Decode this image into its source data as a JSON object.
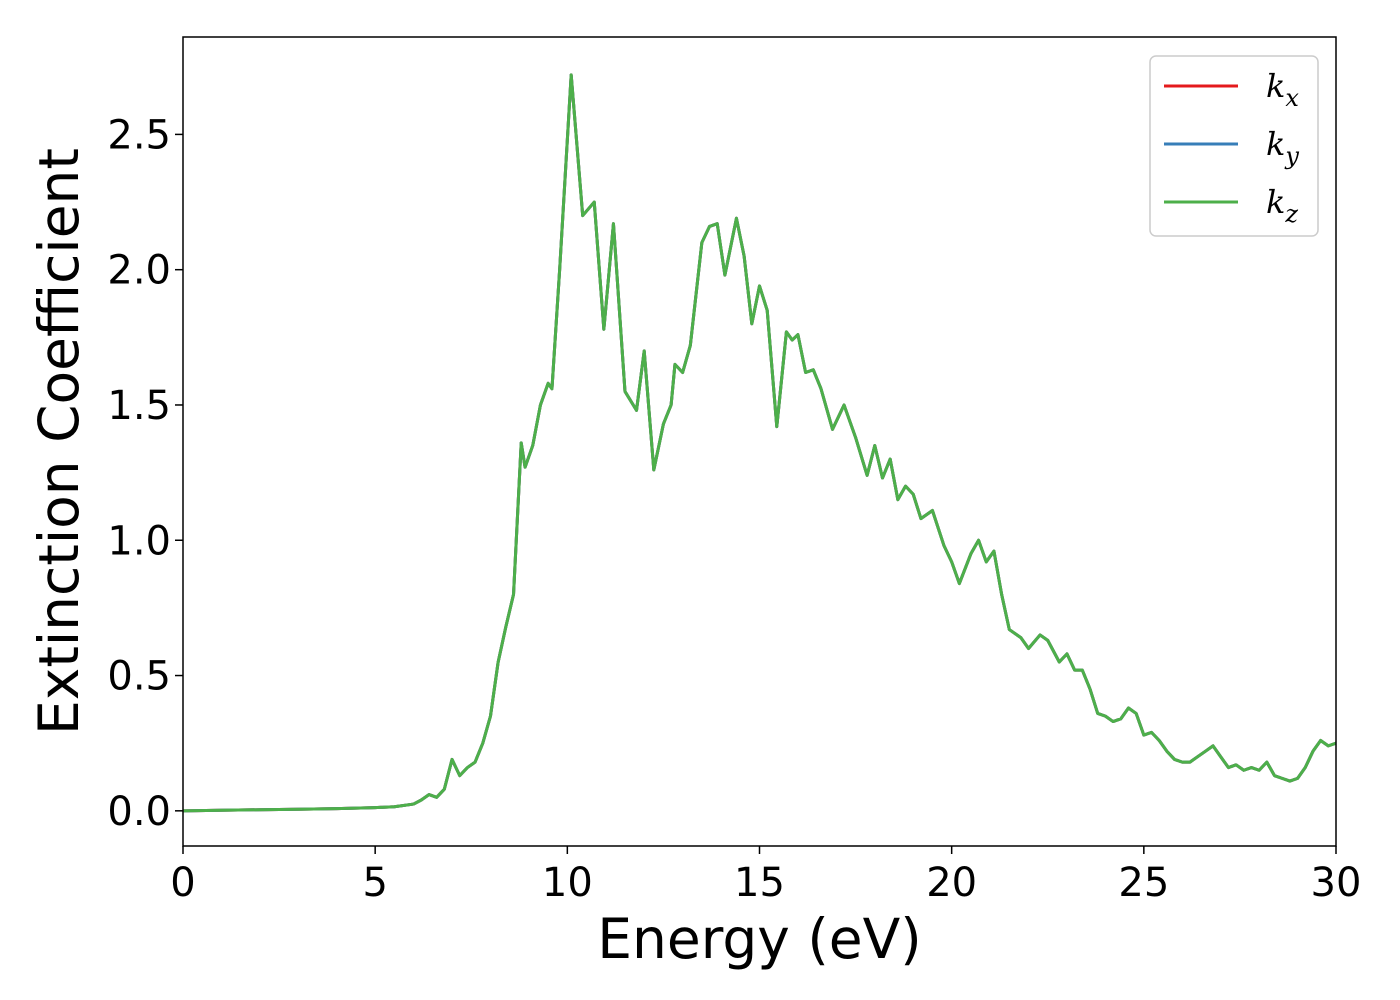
{
  "chart_data": {
    "type": "line",
    "title": "",
    "xlabel": "Energy (eV)",
    "ylabel": "Extinction Coefficient",
    "xlim": [
      0,
      30
    ],
    "ylim": [
      -0.13,
      2.86
    ],
    "xticks": [
      0,
      5,
      10,
      15,
      20,
      25,
      30
    ],
    "xtick_labels": [
      "0",
      "5",
      "10",
      "15",
      "20",
      "25",
      "30"
    ],
    "yticks": [
      0.0,
      0.5,
      1.0,
      1.5,
      2.0,
      2.5
    ],
    "ytick_labels": [
      "0.0",
      "0.5",
      "1.0",
      "1.5",
      "2.0",
      "2.5"
    ],
    "grid": false,
    "legend_position": "top-right",
    "series": [
      {
        "name": "k_x",
        "legend_base": "k",
        "legend_sub": "x",
        "color": "#e41a1c"
      },
      {
        "name": "k_y",
        "legend_base": "k",
        "legend_sub": "y",
        "color": "#377eb8"
      },
      {
        "name": "k_z",
        "legend_base": "k",
        "legend_sub": "z",
        "color": "#4daf4a"
      }
    ],
    "shared_x": [
      0,
      1,
      2,
      3,
      4,
      5,
      5.5,
      6.0,
      6.2,
      6.4,
      6.6,
      6.8,
      7.0,
      7.2,
      7.4,
      7.6,
      7.8,
      8.0,
      8.2,
      8.4,
      8.6,
      8.8,
      8.9,
      9.1,
      9.3,
      9.5,
      9.6,
      9.8,
      10.1,
      10.4,
      10.7,
      10.95,
      11.2,
      11.5,
      11.8,
      12.0,
      12.25,
      12.5,
      12.7,
      12.8,
      13.0,
      13.2,
      13.5,
      13.7,
      13.9,
      14.1,
      14.4,
      14.6,
      14.8,
      15.0,
      15.2,
      15.45,
      15.7,
      15.85,
      16.0,
      16.2,
      16.4,
      16.6,
      16.9,
      17.2,
      17.5,
      17.8,
      18.0,
      18.2,
      18.4,
      18.6,
      18.8,
      19.0,
      19.2,
      19.5,
      19.8,
      20.0,
      20.2,
      20.5,
      20.7,
      20.9,
      21.1,
      21.3,
      21.5,
      21.8,
      22.0,
      22.3,
      22.5,
      22.8,
      23.0,
      23.2,
      23.4,
      23.6,
      23.8,
      24.0,
      24.2,
      24.4,
      24.6,
      24.8,
      25.0,
      25.2,
      25.4,
      25.6,
      25.8,
      26.0,
      26.2,
      26.4,
      26.6,
      26.8,
      27.0,
      27.2,
      27.4,
      27.6,
      27.8,
      28.0,
      28.2,
      28.4,
      28.6,
      28.8,
      29.0,
      29.2,
      29.4,
      29.6,
      29.8,
      30.0
    ],
    "shared_y": [
      0.0,
      0.002,
      0.004,
      0.006,
      0.008,
      0.012,
      0.015,
      0.025,
      0.04,
      0.06,
      0.05,
      0.08,
      0.19,
      0.13,
      0.16,
      0.18,
      0.25,
      0.35,
      0.55,
      0.68,
      0.8,
      1.36,
      1.27,
      1.35,
      1.5,
      1.58,
      1.56,
      2.0,
      2.72,
      2.2,
      2.25,
      1.78,
      2.17,
      1.55,
      1.48,
      1.7,
      1.26,
      1.43,
      1.5,
      1.65,
      1.62,
      1.72,
      2.1,
      2.16,
      2.17,
      1.98,
      2.19,
      2.05,
      1.8,
      1.94,
      1.85,
      1.42,
      1.77,
      1.74,
      1.76,
      1.62,
      1.63,
      1.56,
      1.41,
      1.5,
      1.38,
      1.24,
      1.35,
      1.23,
      1.3,
      1.15,
      1.2,
      1.17,
      1.08,
      1.11,
      0.98,
      0.92,
      0.84,
      0.95,
      1.0,
      0.92,
      0.96,
      0.8,
      0.67,
      0.64,
      0.6,
      0.65,
      0.63,
      0.55,
      0.58,
      0.52,
      0.52,
      0.45,
      0.36,
      0.35,
      0.33,
      0.34,
      0.38,
      0.36,
      0.28,
      0.29,
      0.26,
      0.22,
      0.19,
      0.18,
      0.18,
      0.2,
      0.22,
      0.24,
      0.2,
      0.16,
      0.17,
      0.15,
      0.16,
      0.15,
      0.18,
      0.13,
      0.12,
      0.11,
      0.12,
      0.16,
      0.22,
      0.26,
      0.24,
      0.25
    ]
  }
}
